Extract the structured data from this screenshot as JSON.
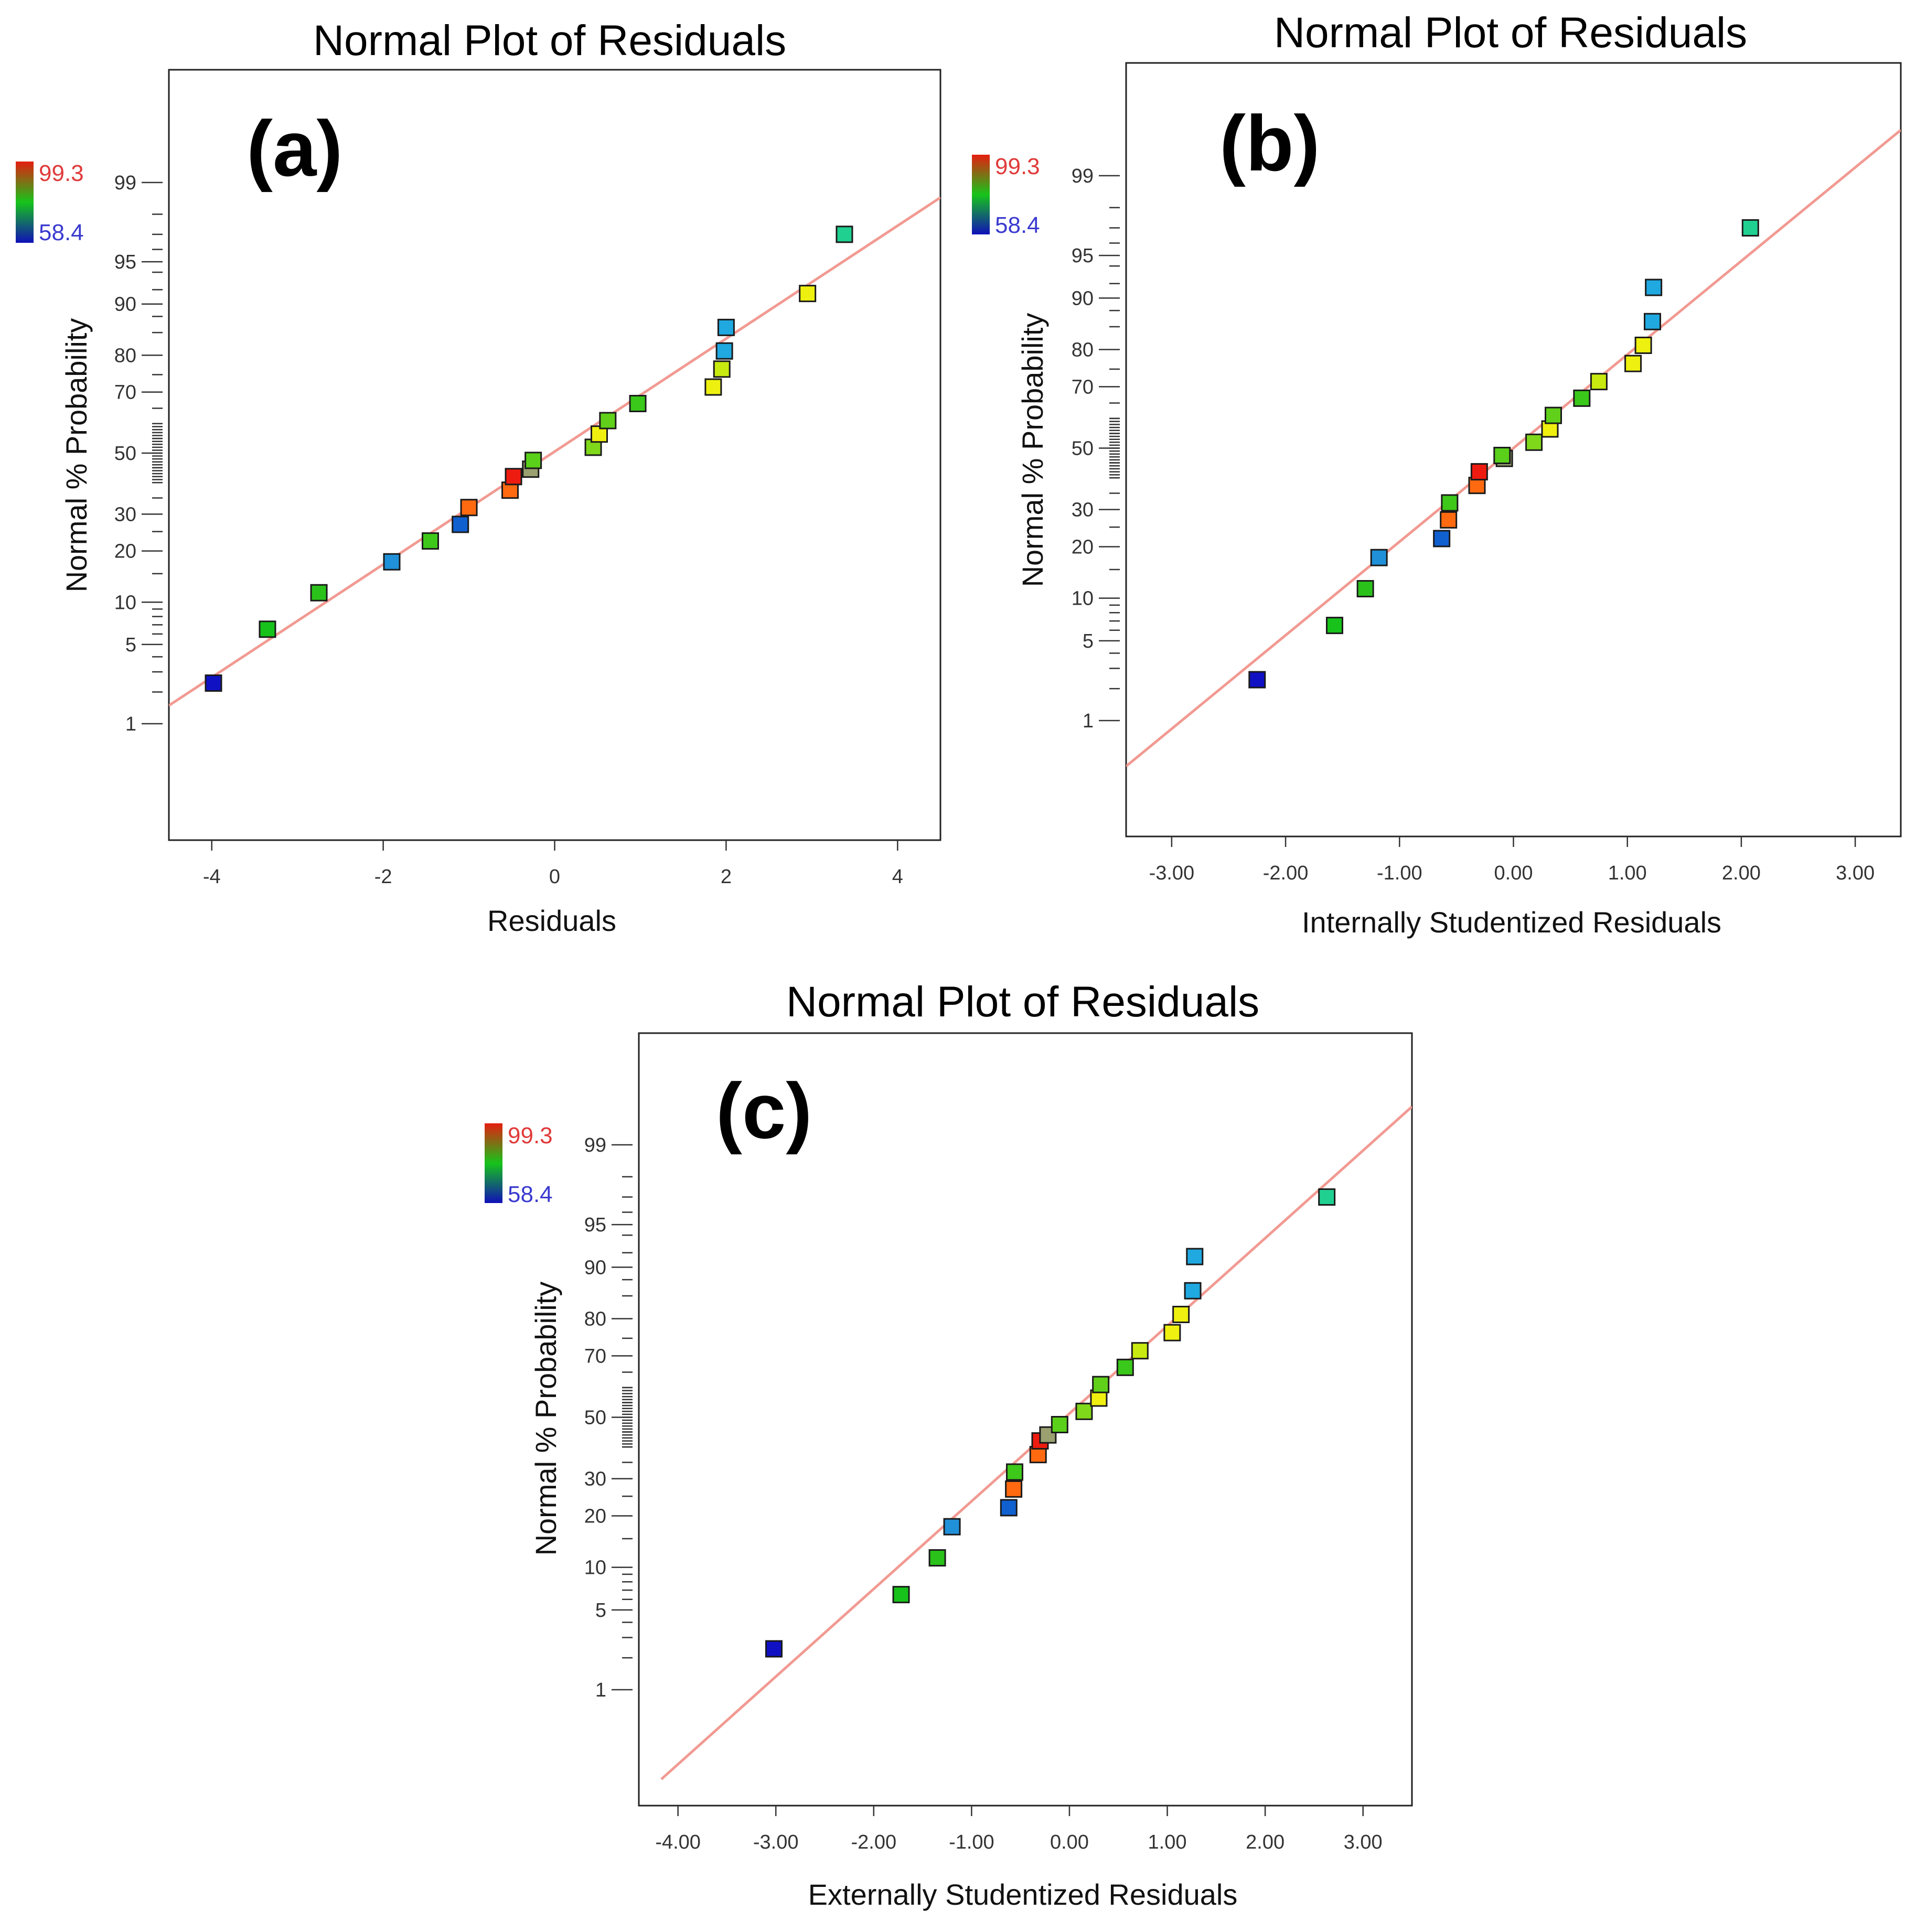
{
  "colorbar": {
    "max_label": "99.3",
    "min_label": "58.4",
    "max": 99.3,
    "min": 58.4
  },
  "colors": {
    "line": "#f19a92",
    "high": "#e51e10",
    "mid": "#16c41a",
    "low": "#1010b8"
  },
  "chart_data": [
    {
      "type": "scatter",
      "panel_label": "(a)",
      "title": "Normal Plot of Residuals",
      "xlabel": "Residuals",
      "ylabel": "Normal % Probability",
      "xlim": [
        -4.5,
        4.5
      ],
      "x_ticks": [
        -4,
        -2,
        0,
        2,
        4
      ],
      "x_tick_labels": [
        "-4",
        "-2",
        "0",
        "2",
        "4"
      ],
      "y_scale": "normal-probability",
      "y_ticks": [
        1,
        5,
        10,
        20,
        30,
        50,
        70,
        80,
        90,
        95,
        99
      ],
      "y_tick_labels": [
        "1",
        "5",
        "10",
        "20",
        "30",
        "50",
        "70",
        "80",
        "90",
        "95",
        "99"
      ],
      "line": {
        "x": [
          -4.5,
          4.5
        ],
        "y": [
          1.5,
          98.6
        ]
      },
      "points": [
        {
          "x": -3.98,
          "y": 2.4,
          "color": "#1111c4"
        },
        {
          "x": -3.35,
          "y": 6.5,
          "color": "#17c21a"
        },
        {
          "x": -2.75,
          "y": 11.5,
          "color": "#2ac21a"
        },
        {
          "x": -1.9,
          "y": 17.5,
          "color": "#2090d8"
        },
        {
          "x": -1.45,
          "y": 22.5,
          "color": "#3ec81a"
        },
        {
          "x": -1.1,
          "y": 27.0,
          "color": "#1060d0"
        },
        {
          "x": -1.0,
          "y": 32.0,
          "color": "#ff6a10"
        },
        {
          "x": -0.52,
          "y": 37.5,
          "color": "#ff6a10"
        },
        {
          "x": -0.48,
          "y": 42.0,
          "color": "#ee1c10"
        },
        {
          "x": -0.28,
          "y": 44.5,
          "color": "#9aa070"
        },
        {
          "x": -0.25,
          "y": 47.5,
          "color": "#5ad01a"
        },
        {
          "x": 0.45,
          "y": 52.0,
          "color": "#80d81a"
        },
        {
          "x": 0.52,
          "y": 56.5,
          "color": "#f0f010"
        },
        {
          "x": 0.62,
          "y": 61.0,
          "color": "#60d01a"
        },
        {
          "x": 0.97,
          "y": 66.5,
          "color": "#3ac81a"
        },
        {
          "x": 1.85,
          "y": 71.5,
          "color": "#eef010"
        },
        {
          "x": 1.95,
          "y": 76.5,
          "color": "#c8ea10"
        },
        {
          "x": 1.98,
          "y": 81.0,
          "color": "#20a8e0"
        },
        {
          "x": 2.0,
          "y": 86.0,
          "color": "#20a8e0"
        },
        {
          "x": 2.95,
          "y": 91.5,
          "color": "#eef010"
        },
        {
          "x": 3.38,
          "y": 97.0,
          "color": "#20d090"
        }
      ]
    },
    {
      "type": "scatter",
      "panel_label": "(b)",
      "title": "Normal Plot of Residuals",
      "xlabel": "Internally Studentized Residuals",
      "ylabel": "Normal % Probability",
      "xlim": [
        -3.4,
        3.4
      ],
      "x_ticks": [
        -3,
        -2,
        -1,
        0,
        1,
        2,
        3
      ],
      "x_tick_labels": [
        "-3.00",
        "-2.00",
        "-1.00",
        "0.00",
        "1.00",
        "2.00",
        "3.00"
      ],
      "y_scale": "normal-probability",
      "y_ticks": [
        1,
        5,
        10,
        20,
        30,
        50,
        70,
        80,
        90,
        95,
        99
      ],
      "y_tick_labels": [
        "1",
        "5",
        "10",
        "20",
        "30",
        "50",
        "70",
        "80",
        "90",
        "95",
        "99"
      ],
      "line": {
        "x": [
          -3.4,
          3.4
        ],
        "y": [
          0.33,
          99.67
        ]
      },
      "points": [
        {
          "x": -2.25,
          "y": 2.4,
          "color": "#1111c4"
        },
        {
          "x": -1.57,
          "y": 6.5,
          "color": "#17c21a"
        },
        {
          "x": -1.3,
          "y": 11.5,
          "color": "#2ac21a"
        },
        {
          "x": -1.18,
          "y": 17.5,
          "color": "#2090d8"
        },
        {
          "x": -0.63,
          "y": 22.0,
          "color": "#1060d0"
        },
        {
          "x": -0.57,
          "y": 27.0,
          "color": "#ff6a10"
        },
        {
          "x": -0.56,
          "y": 32.0,
          "color": "#3ec81a"
        },
        {
          "x": -0.32,
          "y": 37.5,
          "color": "#ff6a10"
        },
        {
          "x": -0.3,
          "y": 42.0,
          "color": "#ee1c10"
        },
        {
          "x": -0.08,
          "y": 46.5,
          "color": "#9aa070"
        },
        {
          "x": -0.1,
          "y": 47.5,
          "color": "#5ad01a"
        },
        {
          "x": 0.18,
          "y": 52.0,
          "color": "#80d81a"
        },
        {
          "x": 0.32,
          "y": 56.5,
          "color": "#f0f010"
        },
        {
          "x": 0.35,
          "y": 61.0,
          "color": "#60d01a"
        },
        {
          "x": 0.6,
          "y": 66.5,
          "color": "#3ac81a"
        },
        {
          "x": 0.75,
          "y": 71.5,
          "color": "#c8ea10"
        },
        {
          "x": 1.05,
          "y": 76.5,
          "color": "#eef010"
        },
        {
          "x": 1.14,
          "y": 81.0,
          "color": "#eef010"
        },
        {
          "x": 1.22,
          "y": 86.0,
          "color": "#20a8e0"
        },
        {
          "x": 1.23,
          "y": 91.5,
          "color": "#20a8e0"
        },
        {
          "x": 2.08,
          "y": 97.0,
          "color": "#20d090"
        }
      ]
    },
    {
      "type": "scatter",
      "panel_label": "(c)",
      "title": "Normal Plot of Residuals",
      "xlabel": "Externally Studentized Residuals",
      "ylabel": "Normal % Probability",
      "xlim": [
        -4.4,
        3.5
      ],
      "x_ticks": [
        -4,
        -3,
        -2,
        -1,
        0,
        1,
        2,
        3
      ],
      "x_tick_labels": [
        "-4.00",
        "-3.00",
        "-2.00",
        "-1.00",
        "0.00",
        "1.00",
        "2.00",
        "3.00"
      ],
      "y_scale": "normal-probability",
      "y_ticks": [
        1,
        5,
        10,
        20,
        30,
        50,
        70,
        80,
        90,
        95,
        99
      ],
      "y_tick_labels": [
        "1",
        "5",
        "10",
        "20",
        "30",
        "50",
        "70",
        "80",
        "90",
        "95",
        "99"
      ],
      "line": {
        "x": [
          -4.17,
          3.5
        ],
        "y": [
          0.1,
          99.6
        ]
      },
      "points": [
        {
          "x": -3.02,
          "y": 2.4,
          "color": "#1111c4"
        },
        {
          "x": -1.72,
          "y": 6.5,
          "color": "#17c21a"
        },
        {
          "x": -1.35,
          "y": 11.5,
          "color": "#2ac21a"
        },
        {
          "x": -1.2,
          "y": 17.5,
          "color": "#2090d8"
        },
        {
          "x": -0.62,
          "y": 22.0,
          "color": "#1060d0"
        },
        {
          "x": -0.57,
          "y": 27.0,
          "color": "#ff6a10"
        },
        {
          "x": -0.56,
          "y": 32.0,
          "color": "#3ec81a"
        },
        {
          "x": -0.32,
          "y": 37.5,
          "color": "#ff6a10"
        },
        {
          "x": -0.3,
          "y": 42.0,
          "color": "#ee1c10"
        },
        {
          "x": -0.22,
          "y": 44.0,
          "color": "#9aa070"
        },
        {
          "x": -0.1,
          "y": 47.5,
          "color": "#5ad01a"
        },
        {
          "x": 0.15,
          "y": 52.0,
          "color": "#80d81a"
        },
        {
          "x": 0.3,
          "y": 56.5,
          "color": "#f0f010"
        },
        {
          "x": 0.32,
          "y": 61.0,
          "color": "#60d01a"
        },
        {
          "x": 0.57,
          "y": 66.5,
          "color": "#3ac81a"
        },
        {
          "x": 0.72,
          "y": 71.5,
          "color": "#c8ea10"
        },
        {
          "x": 1.05,
          "y": 76.5,
          "color": "#eef010"
        },
        {
          "x": 1.14,
          "y": 81.0,
          "color": "#eef010"
        },
        {
          "x": 1.26,
          "y": 86.0,
          "color": "#20a8e0"
        },
        {
          "x": 1.28,
          "y": 91.5,
          "color": "#20a8e0"
        },
        {
          "x": 2.63,
          "y": 97.0,
          "color": "#20d090"
        }
      ]
    }
  ]
}
